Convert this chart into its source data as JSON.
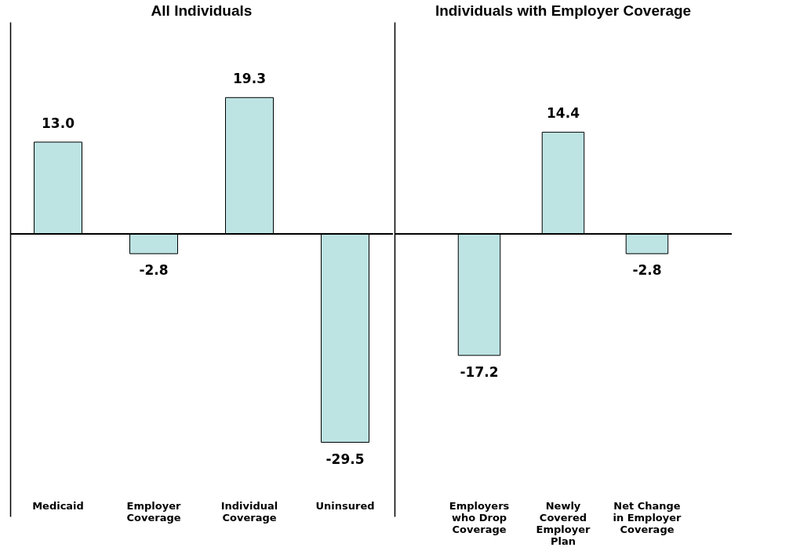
{
  "chart_data": [
    {
      "type": "bar",
      "title": "All Individuals",
      "categories": [
        "Medicaid",
        "Employer Coverage",
        "Individual Coverage",
        "Uninsured"
      ],
      "values": [
        13.0,
        -2.8,
        19.3,
        -29.5
      ],
      "value_labels": [
        "13.0",
        "-2.8",
        "19.3",
        "-29.5"
      ],
      "color": "#bde3e3",
      "ylim": [
        -40,
        30
      ],
      "tick_labels": "x"
    },
    {
      "type": "bar",
      "title": "Individuals with Employer Coverage",
      "categories": [
        "Employers who Drop Coverage",
        "Newly Covered Employer Plan",
        "Net Change in Employer Coverage"
      ],
      "values": [
        -17.2,
        14.4,
        -2.8
      ],
      "value_labels": [
        "-17.2",
        "14.4",
        "-2.8"
      ],
      "color": "#bde3e3",
      "ylim": [
        -40,
        30
      ],
      "tick_labels": "x"
    }
  ]
}
